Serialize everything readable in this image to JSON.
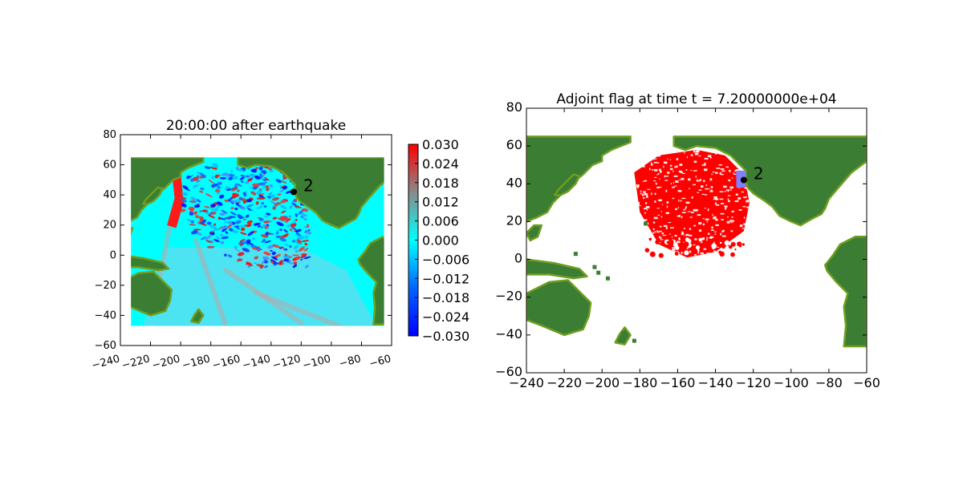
{
  "colors": {
    "land": "#3a7d33",
    "land_coast": "#6f9d1f",
    "ocean_still": "#00ffff",
    "flag": "#ff0000",
    "gauge_box": "#7f7fff",
    "gauge": "#000000"
  },
  "chart_data": [
    {
      "type": "heatmap",
      "title": "20:00:00 after earthquake",
      "xlabel": "",
      "ylabel": "",
      "xlim": [
        -240,
        -60
      ],
      "ylim": [
        -60,
        80
      ],
      "xticks": [
        "−240",
        "−220",
        "−200",
        "−180",
        "−160",
        "−140",
        "−120",
        "−100",
        "−80",
        "−60"
      ],
      "yticks": [
        "80",
        "60",
        "40",
        "20",
        "0",
        "−20",
        "−40",
        "−60"
      ],
      "data_extent": {
        "x": [
          -233,
          -65
        ],
        "y": [
          -47,
          65
        ]
      },
      "colorbar": {
        "range": [
          -0.03,
          0.03
        ],
        "ticks": [
          "0.030",
          "0.024",
          "0.018",
          "0.012",
          "0.006",
          "0.000",
          "−0.006",
          "−0.012",
          "−0.018",
          "−0.024",
          "−0.030"
        ]
      },
      "gauge": {
        "label": "2",
        "x": -125,
        "y": 42
      }
    },
    {
      "type": "heatmap",
      "title": "Adjoint flag at time t = 7.20000000e+04",
      "xlabel": "",
      "ylabel": "",
      "xlim": [
        -240,
        -60
      ],
      "ylim": [
        -60,
        80
      ],
      "xticks": [
        "−240",
        "−220",
        "−200",
        "−180",
        "−160",
        "−140",
        "−120",
        "−100",
        "−80",
        "−60"
      ],
      "yticks": [
        "80",
        "60",
        "40",
        "20",
        "0",
        "−20",
        "−40",
        "−60"
      ],
      "flag_region_extent": {
        "x": [
          -183,
          -125
        ],
        "y": [
          1,
          58
        ]
      },
      "gauge": {
        "label": "2",
        "x": -125,
        "y": 42
      }
    }
  ]
}
